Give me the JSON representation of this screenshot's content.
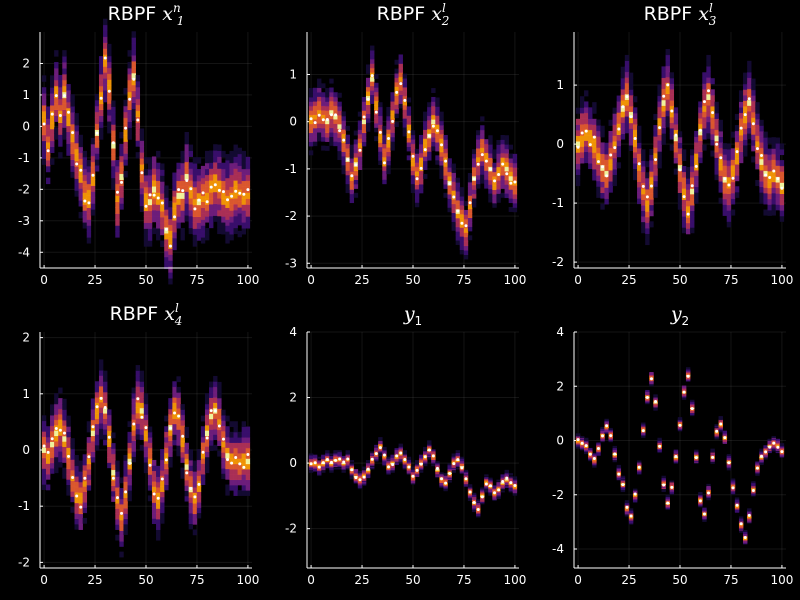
{
  "colors": {
    "background": "#000000",
    "foreground": "#ffffff",
    "heatmap": [
      "#140b34",
      "#3b0f70",
      "#721f81",
      "#b1325a",
      "#e55c30",
      "#fb9b06",
      "#fcffa4"
    ],
    "marker": "#ffffff"
  },
  "chart_data": [
    {
      "type": "heatmap",
      "title_main": "RBPF",
      "title_math": "x",
      "title_sub": "1",
      "title_sup": "n",
      "x": [
        0,
        2,
        4,
        6,
        8,
        10,
        12,
        14,
        16,
        18,
        20,
        22,
        24,
        26,
        28,
        30,
        32,
        34,
        36,
        38,
        40,
        42,
        44,
        46,
        48,
        50,
        52,
        54,
        56,
        58,
        60,
        62,
        64,
        66,
        68,
        70,
        72,
        74,
        76,
        78,
        80,
        82,
        84,
        86,
        88,
        90,
        92,
        94,
        96,
        98,
        100
      ],
      "y": [
        0.2,
        -0.6,
        0.2,
        1.0,
        0.4,
        1.0,
        0.3,
        -0.4,
        -1.0,
        -1.5,
        -2.2,
        -2.3,
        -1.6,
        -0.2,
        1.0,
        2.0,
        1.2,
        -0.6,
        -2.3,
        -1.6,
        -0.2,
        1.0,
        1.6,
        0.4,
        -1.3,
        -2.4,
        -2.4,
        -2.0,
        -2.2,
        -2.6,
        -3.3,
        -3.6,
        -2.7,
        -2.2,
        -2.2,
        -1.6,
        -2.0,
        -2.4,
        -2.4,
        -2.3,
        -2.2,
        -2.0,
        -1.8,
        -2.0,
        -2.2,
        -2.3,
        -2.2,
        -2.0,
        -2.1,
        -2.2,
        -2.2
      ],
      "spread": 0.6,
      "ticks_x": [
        "0",
        "25",
        "50",
        "75",
        "100"
      ],
      "ticks_y": [
        "2",
        "1",
        "0",
        "-1",
        "-2",
        "-3",
        "-4"
      ],
      "xlim": [
        -2,
        102
      ],
      "ylim": [
        -4.5,
        3.0
      ]
    },
    {
      "type": "heatmap",
      "title_main": "RBPF",
      "title_math": "x",
      "title_sub": "2",
      "title_sup": "l",
      "x": [
        0,
        2,
        4,
        6,
        8,
        10,
        12,
        14,
        16,
        18,
        20,
        22,
        24,
        26,
        28,
        30,
        32,
        34,
        36,
        38,
        40,
        42,
        44,
        46,
        48,
        50,
        52,
        54,
        56,
        58,
        60,
        62,
        64,
        66,
        68,
        70,
        72,
        74,
        76,
        78,
        80,
        82,
        84,
        86,
        88,
        90,
        92,
        94,
        96,
        98,
        100
      ],
      "y": [
        0.0,
        0.1,
        0.2,
        0.1,
        0.0,
        0.2,
        0.1,
        -0.1,
        -0.4,
        -0.8,
        -1.2,
        -0.9,
        -0.5,
        0.0,
        0.5,
        0.9,
        0.3,
        -0.3,
        -0.8,
        -0.4,
        0.1,
        0.6,
        0.9,
        0.4,
        -0.2,
        -0.8,
        -1.1,
        -0.9,
        -0.5,
        -0.3,
        0.0,
        -0.2,
        -0.5,
        -0.9,
        -1.3,
        -1.6,
        -1.9,
        -2.1,
        -2.3,
        -1.8,
        -1.2,
        -0.8,
        -0.6,
        -0.8,
        -1.0,
        -1.3,
        -1.1,
        -0.9,
        -1.0,
        -1.2,
        -1.3
      ],
      "spread": 0.3,
      "ticks_x": [
        "0",
        "25",
        "50",
        "75",
        "100"
      ],
      "ticks_y": [
        "1",
        "0",
        "-1",
        "-2",
        "-3"
      ],
      "xlim": [
        -2,
        102
      ],
      "ylim": [
        -3.1,
        1.9
      ]
    },
    {
      "type": "heatmap",
      "title_main": "RBPF",
      "title_math": "x",
      "title_sub": "3",
      "title_sup": "l",
      "x": [
        0,
        2,
        4,
        6,
        8,
        10,
        12,
        14,
        16,
        18,
        20,
        22,
        24,
        26,
        28,
        30,
        32,
        34,
        36,
        38,
        40,
        42,
        44,
        46,
        48,
        50,
        52,
        54,
        56,
        58,
        60,
        62,
        64,
        66,
        68,
        70,
        72,
        74,
        76,
        78,
        80,
        82,
        84,
        86,
        88,
        90,
        92,
        94,
        96,
        98,
        100
      ],
      "y": [
        0.0,
        0.1,
        0.2,
        0.1,
        0.0,
        -0.2,
        -0.4,
        -0.5,
        -0.3,
        0.0,
        0.3,
        0.6,
        0.8,
        0.5,
        0.1,
        -0.4,
        -0.8,
        -1.0,
        -0.7,
        -0.2,
        0.3,
        0.7,
        0.9,
        0.6,
        0.1,
        -0.4,
        -0.8,
        -1.1,
        -0.8,
        -0.3,
        0.2,
        0.6,
        0.8,
        0.5,
        0.1,
        -0.3,
        -0.6,
        -0.7,
        -0.5,
        -0.2,
        0.2,
        0.5,
        0.7,
        0.4,
        0.0,
        -0.3,
        -0.5,
        -0.6,
        -0.5,
        -0.6,
        -0.7
      ],
      "spread": 0.3,
      "ticks_x": [
        "0",
        "25",
        "50",
        "75",
        "100"
      ],
      "ticks_y": [
        "1",
        "0",
        "-1",
        "-2"
      ],
      "xlim": [
        -2,
        102
      ],
      "ylim": [
        -2.1,
        1.9
      ]
    },
    {
      "type": "heatmap",
      "title_main": "RBPF",
      "title_math": "x",
      "title_sub": "4",
      "title_sup": "l",
      "x": [
        0,
        2,
        4,
        6,
        8,
        10,
        12,
        14,
        16,
        18,
        20,
        22,
        24,
        26,
        28,
        30,
        32,
        34,
        36,
        38,
        40,
        42,
        44,
        46,
        48,
        50,
        52,
        54,
        56,
        58,
        60,
        62,
        64,
        66,
        68,
        70,
        72,
        74,
        76,
        78,
        80,
        82,
        84,
        86,
        88,
        90,
        92,
        94,
        96,
        98,
        100
      ],
      "y": [
        0.0,
        -0.1,
        0.1,
        0.3,
        0.4,
        0.2,
        -0.1,
        -0.5,
        -0.8,
        -0.9,
        -0.6,
        -0.2,
        0.3,
        0.7,
        0.9,
        0.7,
        0.2,
        -0.4,
        -0.9,
        -1.2,
        -0.8,
        -0.2,
        0.4,
        0.8,
        0.7,
        0.3,
        -0.2,
        -0.7,
        -0.9,
        -0.6,
        -0.1,
        0.4,
        0.7,
        0.6,
        0.2,
        -0.3,
        -0.7,
        -0.9,
        -0.6,
        -0.1,
        0.3,
        0.6,
        0.7,
        0.5,
        0.1,
        -0.1,
        -0.2,
        -0.2,
        -0.2,
        -0.2,
        -0.2
      ],
      "spread": 0.3,
      "ticks_x": [
        "0",
        "25",
        "50",
        "75",
        "100"
      ],
      "ticks_y": [
        "2",
        "1",
        "0",
        "-1",
        "-2"
      ],
      "xlim": [
        -2,
        102
      ],
      "ylim": [
        -2.1,
        2.1
      ]
    },
    {
      "type": "heatmap",
      "title_main": "",
      "title_math": "y",
      "title_sub": "1",
      "title_sup": "",
      "x": [
        0,
        2,
        4,
        6,
        8,
        10,
        12,
        14,
        16,
        18,
        20,
        22,
        24,
        26,
        28,
        30,
        32,
        34,
        36,
        38,
        40,
        42,
        44,
        46,
        48,
        50,
        52,
        54,
        56,
        58,
        60,
        62,
        64,
        66,
        68,
        70,
        72,
        74,
        76,
        78,
        80,
        82,
        84,
        86,
        88,
        90,
        92,
        94,
        96,
        98,
        100
      ],
      "y": [
        0.0,
        0.0,
        -0.1,
        0.0,
        0.1,
        0.0,
        0.1,
        0.1,
        0.0,
        0.1,
        -0.2,
        -0.4,
        -0.5,
        -0.4,
        -0.2,
        0.1,
        0.3,
        0.5,
        0.2,
        -0.1,
        0.0,
        0.2,
        0.3,
        0.1,
        -0.1,
        -0.4,
        -0.2,
        0.0,
        0.2,
        0.4,
        0.2,
        -0.2,
        -0.5,
        -0.6,
        -0.3,
        0.0,
        0.1,
        -0.1,
        -0.5,
        -0.9,
        -1.2,
        -1.4,
        -1.0,
        -0.6,
        -0.7,
        -0.9,
        -0.8,
        -0.6,
        -0.5,
        -0.6,
        -0.7
      ],
      "spread": 0.12,
      "ticks_x": [
        "0",
        "25",
        "50",
        "75",
        "100"
      ],
      "ticks_y": [
        "4",
        "2",
        "0",
        "-2"
      ],
      "xlim": [
        -2,
        102
      ],
      "ylim": [
        -3.2,
        4.0
      ]
    },
    {
      "type": "heatmap",
      "title_main": "",
      "title_math": "y",
      "title_sub": "2",
      "title_sup": "",
      "x": [
        0,
        2,
        4,
        6,
        8,
        10,
        12,
        14,
        16,
        18,
        20,
        22,
        24,
        26,
        28,
        30,
        32,
        34,
        36,
        38,
        40,
        42,
        44,
        46,
        48,
        50,
        52,
        54,
        56,
        58,
        60,
        62,
        64,
        66,
        68,
        70,
        72,
        74,
        76,
        78,
        80,
        82,
        84,
        86,
        88,
        90,
        92,
        94,
        96,
        98,
        100
      ],
      "y": [
        0.0,
        -0.1,
        -0.2,
        -0.5,
        -0.7,
        -0.3,
        0.2,
        0.5,
        0.2,
        -0.5,
        -1.2,
        -1.6,
        -2.5,
        -2.8,
        -2.0,
        -1.0,
        0.4,
        1.6,
        2.3,
        1.4,
        -0.2,
        -1.6,
        -2.3,
        -1.7,
        -0.6,
        0.6,
        1.8,
        2.4,
        1.2,
        -0.6,
        -2.2,
        -2.7,
        -1.9,
        -0.6,
        0.3,
        0.6,
        0.1,
        -0.8,
        -1.7,
        -2.4,
        -3.1,
        -3.6,
        -2.8,
        -1.8,
        -1.0,
        -0.6,
        -0.4,
        -0.2,
        -0.1,
        -0.2,
        -0.4
      ],
      "spread": 0.12,
      "ticks_x": [
        "0",
        "25",
        "50",
        "75",
        "100"
      ],
      "ticks_y": [
        "4",
        "2",
        "0",
        "-2",
        "-4"
      ],
      "xlim": [
        -2,
        102
      ],
      "ylim": [
        -4.7,
        4.0
      ]
    }
  ]
}
